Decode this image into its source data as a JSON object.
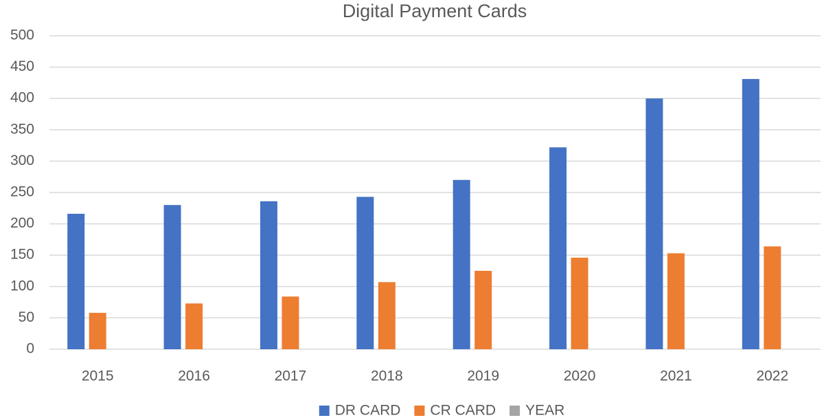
{
  "chart_data": {
    "type": "bar",
    "title": "Digital Payment Cards",
    "categories": [
      "2015",
      "2016",
      "2017",
      "2018",
      "2019",
      "2020",
      "2021",
      "2022"
    ],
    "series": [
      {
        "name": "DR CARD",
        "color": "#4472c4",
        "values": [
          216,
          230,
          236,
          243,
          270,
          322,
          400,
          431
        ]
      },
      {
        "name": "CR CARD",
        "color": "#ed7d31",
        "values": [
          58,
          73,
          84,
          107,
          125,
          146,
          153,
          164
        ]
      },
      {
        "name": "YEAR",
        "color": "#a5a5a5",
        "values": [
          null,
          null,
          null,
          null,
          null,
          null,
          null,
          null
        ]
      }
    ],
    "ylim": [
      0,
      500
    ],
    "yticks": [
      0,
      50,
      100,
      150,
      200,
      250,
      300,
      350,
      400,
      450,
      500
    ],
    "grid": true,
    "legend": "bottom"
  }
}
